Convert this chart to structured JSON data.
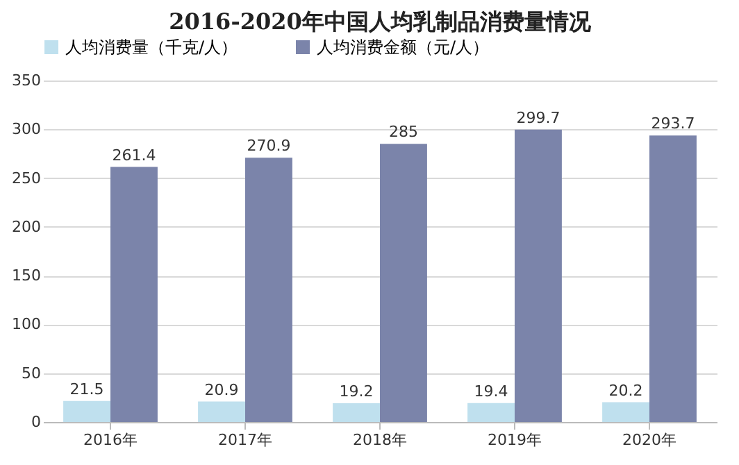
{
  "chart_data": {
    "type": "bar",
    "title": "2016-2020年中国人均乳制品消费量情况",
    "categories": [
      "2016年",
      "2017年",
      "2018年",
      "2019年",
      "2020年"
    ],
    "series": [
      {
        "name": "人均消费量（千克/人）",
        "color": "#bfe0ee",
        "values": [
          21.5,
          20.9,
          19.2,
          19.4,
          20.2
        ]
      },
      {
        "name": "人均消费金额（元/人）",
        "color": "#7b84aa",
        "values": [
          261.4,
          270.9,
          285,
          299.7,
          293.7
        ]
      }
    ],
    "ylim": [
      0,
      350
    ],
    "yticks": [
      0,
      50,
      100,
      150,
      200,
      250,
      300,
      350
    ],
    "grid": "y",
    "legend": "top",
    "data_labels": true
  }
}
